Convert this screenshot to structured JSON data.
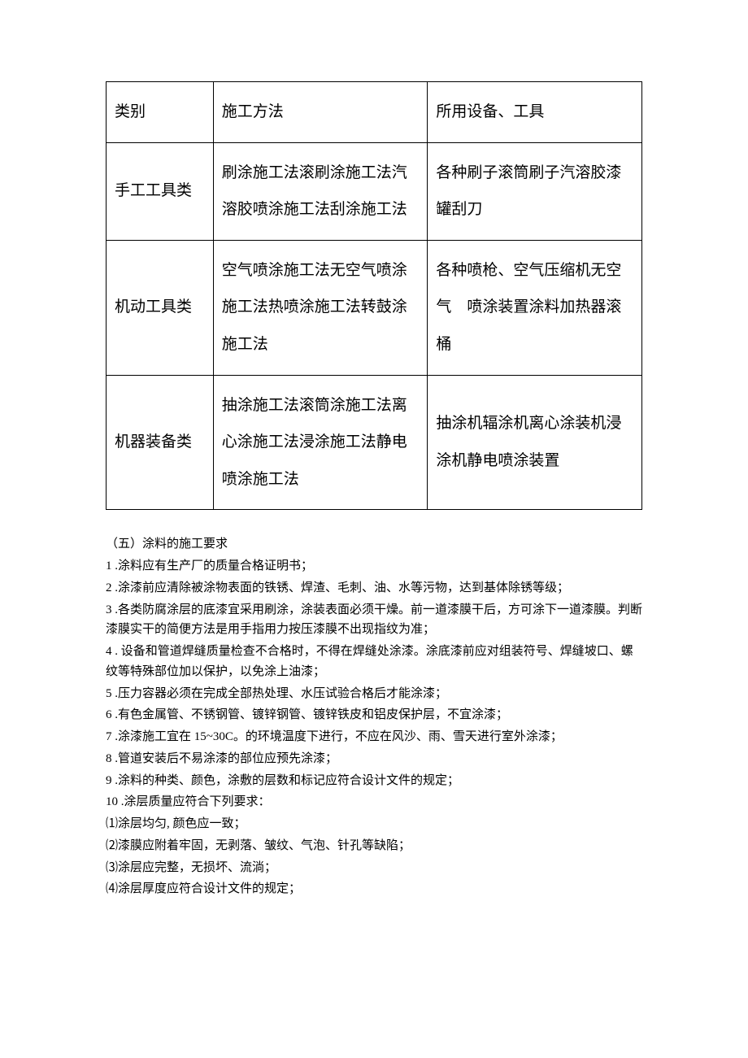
{
  "table": {
    "headers": {
      "category": "类别",
      "method": "施工方法",
      "tool": "所用设备、工具"
    },
    "rows": [
      {
        "category": "手工工具类",
        "method": "刷涂施工法滚刷涂施工法汽溶胶喷涂施工法刮涂施工法",
        "tool": "各种刷子滚筒刷子汽溶胶漆罐刮刀"
      },
      {
        "category": "机动工具类",
        "method": "空气喷涂施工法无空气喷涂施工法热喷涂施工法转鼓涂施工法",
        "tool": " 各种喷枪、空气压缩机无空气　喷涂装置涂料加热器滚桶"
      },
      {
        "category": "机器装备类",
        "method": "抽涂施工法滚筒涂施工法离心涂施工法浸涂施工法静电喷涂施工法",
        "tool": "抽涂机辐涂机离心涂装机浸涂机静电喷涂装置"
      }
    ]
  },
  "section": {
    "title": "（五）涂料的施工要求",
    "items": [
      {
        "num": "1",
        "text": " .涂料应有生产厂的质量合格证明书；"
      },
      {
        "num": "2",
        "text": " .涂漆前应清除被涂物表面的铁锈、焊渣、毛刺、油、水等污物，达到基体除锈等级；"
      },
      {
        "num": "3",
        "text": " .各类防腐涂层的底漆宜采用刷涂，涂装表面必须干燥。前一道漆膜干后，方可涂下一道漆膜。判断漆膜实干的简便方法是用手指用力按压漆膜不出现指纹为准；"
      },
      {
        "num": "4",
        "text": " . 设备和管道焊缝质量检查不合格时，不得在焊缝处涂漆。涂底漆前应对组装符号、焊缝坡口、螺纹等特殊部位加以保护，以免涂上油漆；"
      },
      {
        "num": "5",
        "text": " .压力容器必须在完成全部热处理、水压试验合格后才能涂漆；"
      },
      {
        "num": "6",
        "text": " .有色金属管、不锈钢管、镀锌钢管、镀锌铁皮和铝皮保护层，不宜涂漆；"
      },
      {
        "num": "7",
        "text": " .涂漆施工宜在 15~30C。的环境温度下进行，不应在风沙、雨、雪天进行室外涂漆；"
      },
      {
        "num": "8",
        "text": " .管道安装后不易涂漆的部位应预先涂漆；"
      },
      {
        "num": "9",
        "text": " .涂料的种类、颜色，涂敷的层数和标记应符合设计文件的规定；"
      },
      {
        "num": "10",
        "text": "  .涂层质量应符合下列要求："
      }
    ],
    "subitems": [
      {
        "num": "⑴",
        "text": "涂层均匀, 颜色应一致；"
      },
      {
        "num": "⑵",
        "text": "漆膜应附着牢固，无剥落、皱纹、气泡、针孔等缺陷；"
      },
      {
        "num": "⑶",
        "text": "涂层应完整，无损坏、流淌；"
      },
      {
        "num": "⑷",
        "text": "涂层厚度应符合设计文件的规定；"
      }
    ]
  }
}
